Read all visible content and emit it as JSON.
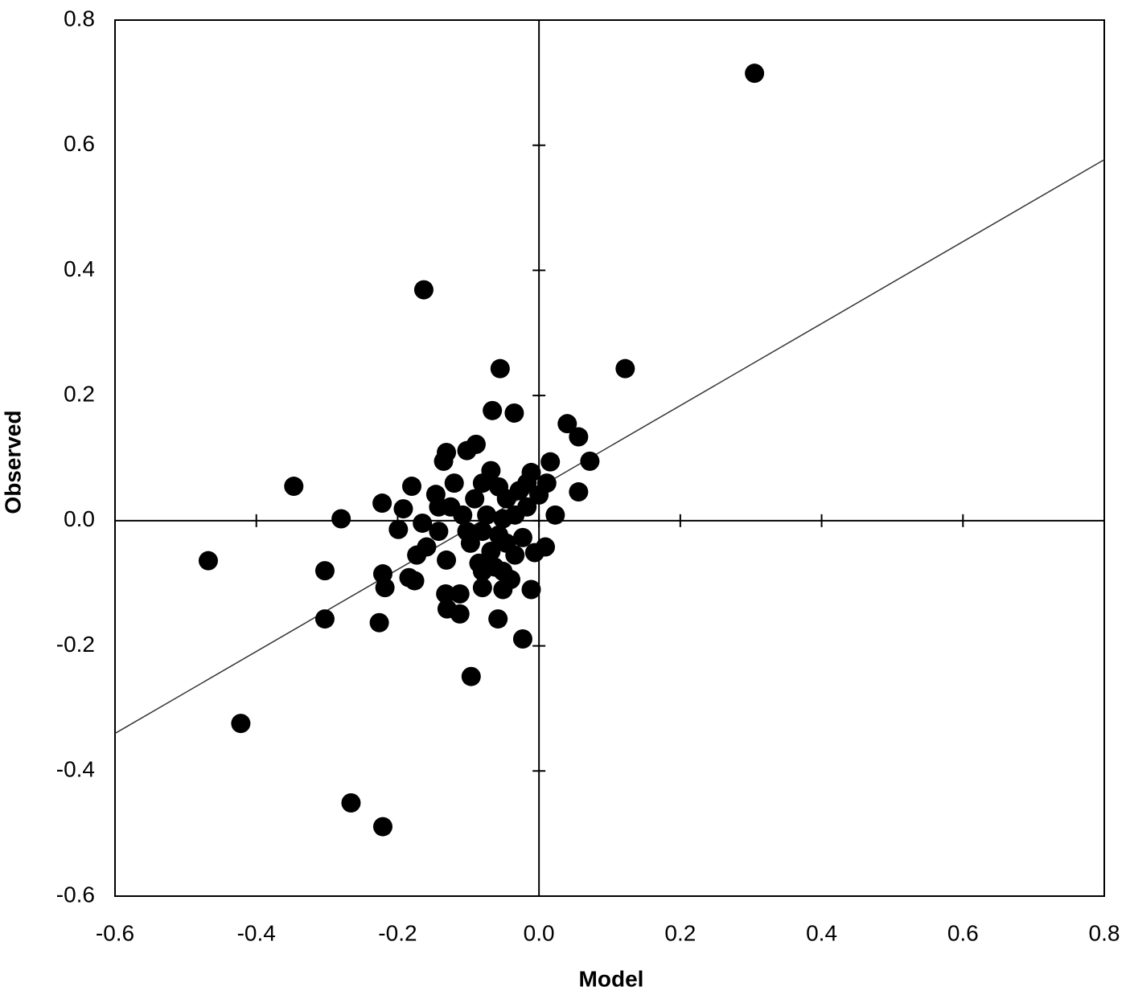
{
  "chart_data": {
    "type": "scatter",
    "x_label": "Model",
    "y_label": "Observed",
    "color": "#000000",
    "x": [
      0.305,
      -0.163,
      -0.055,
      0.122,
      -0.066,
      -0.035,
      0.04,
      0.056,
      0.072,
      -0.347,
      -0.468,
      -0.28,
      -0.303,
      -0.303,
      -0.226,
      -0.422,
      -0.266,
      -0.221,
      -0.096,
      -0.023,
      -0.058,
      -0.222,
      -0.18,
      -0.192,
      -0.221,
      -0.218,
      -0.184,
      -0.176,
      -0.199,
      0.056,
      0.016,
      -0.011,
      -0.089,
      -0.131,
      -0.135,
      -0.102,
      -0.011,
      -0.112,
      -0.132,
      -0.13,
      -0.112,
      -0.08,
      -0.051,
      -0.04,
      -0.131,
      -0.173,
      -0.146,
      -0.142,
      -0.165,
      -0.159,
      0.023,
      0.009,
      -0.006,
      -0.023,
      -0.08,
      -0.068,
      -0.057,
      -0.046,
      -0.091,
      -0.108,
      -0.074,
      -0.051,
      -0.034,
      -0.08,
      -0.057,
      -0.097,
      -0.068,
      -0.046,
      -0.085,
      -0.063,
      -0.034,
      -0.12,
      -0.102,
      -0.017,
      0,
      -0.017,
      -0.08,
      -0.051,
      -0.125,
      -0.142,
      0.011,
      -0.028
    ],
    "y": [
      0.715,
      0.369,
      0.243,
      0.243,
      0.176,
      0.172,
      0.155,
      0.134,
      0.095,
      0.055,
      -0.064,
      0.003,
      -0.08,
      -0.157,
      -0.163,
      -0.324,
      -0.451,
      -0.489,
      -0.249,
      -0.189,
      -0.157,
      0.028,
      0.055,
      0.019,
      -0.085,
      -0.107,
      -0.091,
      -0.096,
      -0.014,
      0.046,
      0.094,
      0.077,
      0.122,
      0.109,
      0.095,
      0.112,
      -0.11,
      -0.117,
      -0.117,
      -0.141,
      -0.149,
      -0.107,
      -0.11,
      -0.094,
      -0.063,
      -0.055,
      0.042,
      0.022,
      -0.004,
      -0.042,
      0.009,
      -0.042,
      -0.051,
      -0.027,
      0.06,
      0.08,
      0.054,
      0.035,
      0.035,
      0.009,
      0.009,
      0.003,
      0.009,
      -0.017,
      -0.023,
      -0.036,
      -0.049,
      -0.036,
      -0.068,
      -0.074,
      -0.055,
      0.06,
      -0.017,
      0.06,
      0.041,
      0.022,
      -0.081,
      -0.081,
      0.022,
      -0.017,
      0.06,
      0.048
    ],
    "trend": {
      "x": [
        -0.6,
        0.8
      ],
      "y": [
        -0.34,
        0.577
      ]
    },
    "xlim": [
      -0.6,
      0.8
    ],
    "ylim": [
      -0.6,
      0.8
    ],
    "xticks": [
      -0.6,
      -0.4,
      -0.2,
      {
        "value": 0,
        "label": "0.0"
      },
      0.2,
      0.4,
      0.6,
      0.8
    ],
    "yticks": [
      -0.6,
      -0.4,
      -0.2,
      {
        "value": 0,
        "label": "0.0"
      },
      0.2,
      0.4,
      0.6,
      0.8
    ]
  }
}
